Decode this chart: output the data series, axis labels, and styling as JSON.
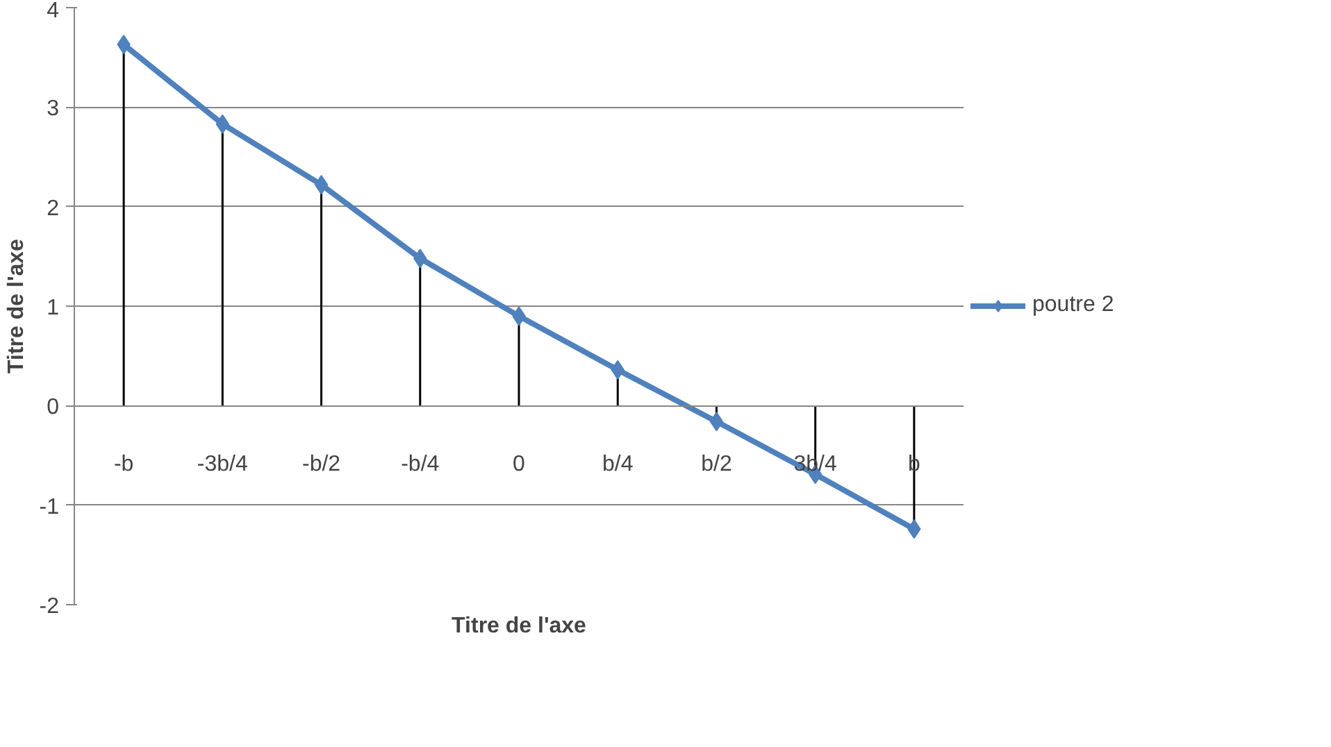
{
  "chart_data": {
    "type": "line",
    "xlabel": "Titre de l'axe",
    "ylabel": "Titre de l'axe",
    "categories": [
      "-b",
      "-3b/4",
      "-b/2",
      "-b/4",
      "0",
      "b/4",
      "b/2",
      "3b/4",
      "b"
    ],
    "series": [
      {
        "name": "poutre 2",
        "color": "#4f81bd",
        "values": [
          3.63,
          2.83,
          2.22,
          1.48,
          0.9,
          0.36,
          -0.16,
          -0.69,
          -1.24
        ],
        "errors": [
          [
            0,
            3.63
          ],
          [
            0,
            2.83
          ],
          [
            0,
            2.22
          ],
          [
            0,
            1.48
          ],
          [
            0,
            0.9
          ],
          [
            0,
            0.36
          ],
          [
            -0.16,
            0
          ],
          [
            -0.69,
            0
          ],
          [
            -1.24,
            0
          ]
        ]
      }
    ],
    "marker": "diamond",
    "ylim": [
      -2,
      4
    ],
    "yticks": [
      -2,
      -1,
      0,
      1,
      2,
      3,
      4
    ],
    "grid": "y",
    "legend": "right"
  }
}
